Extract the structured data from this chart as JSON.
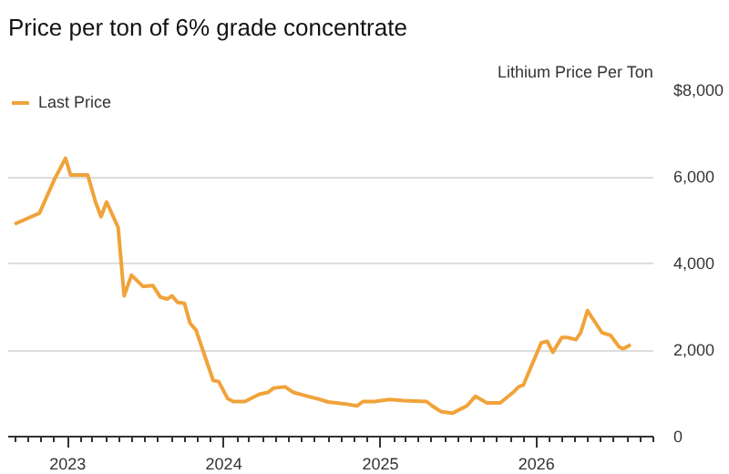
{
  "chart_data": {
    "type": "line",
    "title": "Price per ton of 6% grade concentrate",
    "ylabel": "Lithium Price Per Ton",
    "x": [
      "2022-08-30",
      "2022-10-27",
      "2022-12-02",
      "2022-12-27",
      "2023-01-08",
      "2023-02-17",
      "2023-03-07",
      "2023-03-20",
      "2023-04-02",
      "2023-04-29",
      "2023-05-13",
      "2023-05-30",
      "2023-06-26",
      "2023-07-19",
      "2023-08-06",
      "2023-08-22",
      "2023-09-02",
      "2023-09-15",
      "2023-10-01",
      "2023-10-14",
      "2023-10-28",
      "2023-12-07",
      "2023-12-20",
      "2024-01-10",
      "2024-01-23",
      "2024-02-19",
      "2024-03-24",
      "2024-04-13",
      "2024-04-26",
      "2024-05-23",
      "2024-06-12",
      "2024-07-16",
      "2024-08-05",
      "2024-09-01",
      "2024-10-08",
      "2024-11-07",
      "2024-11-21",
      "2024-12-18",
      "2025-01-22",
      "2025-02-24",
      "2025-04-19",
      "2025-05-02",
      "2025-05-22",
      "2025-06-18",
      "2025-07-22",
      "2025-08-11",
      "2025-09-07",
      "2025-10-08",
      "2025-11-07",
      "2025-11-20",
      "2025-12-01",
      "2026-01-12",
      "2026-01-26",
      "2026-02-08",
      "2026-03-01",
      "2026-03-14",
      "2026-04-03",
      "2026-04-14",
      "2026-04-30",
      "2026-06-03",
      "2026-06-23",
      "2026-07-13",
      "2026-07-23",
      "2026-08-09"
    ],
    "series": [
      {
        "name": "Last Price",
        "color": "#f0a33a",
        "values": [
          4910,
          5160,
          5960,
          6430,
          6040,
          6040,
          5420,
          5080,
          5420,
          4830,
          3250,
          3730,
          3470,
          3490,
          3220,
          3180,
          3250,
          3100,
          3080,
          2620,
          2460,
          1300,
          1270,
          880,
          810,
          810,
          980,
          1020,
          1120,
          1150,
          1020,
          930,
          880,
          800,
          760,
          710,
          810,
          810,
          860,
          830,
          810,
          710,
          580,
          540,
          710,
          930,
          780,
          780,
          1020,
          1150,
          1190,
          2170,
          2200,
          1950,
          2290,
          2290,
          2240,
          2400,
          2910,
          2400,
          2340,
          2070,
          2030,
          2120
        ]
      }
    ],
    "xlim": [
      "2022-08-15",
      "2026-10-01"
    ],
    "xticks": [
      {
        "value": "2023-01-01",
        "label": "2023"
      },
      {
        "value": "2024-01-01",
        "label": "2024"
      },
      {
        "value": "2025-01-01",
        "label": "2025"
      },
      {
        "value": "2026-01-01",
        "label": "2026"
      }
    ],
    "ylim": [
      0,
      8000
    ],
    "yticks": [
      0,
      {
        "value": 2000,
        "label": "2,000"
      },
      {
        "value": 4000,
        "label": "4,000"
      },
      {
        "value": 6000,
        "label": "6,000"
      },
      {
        "value": 8000,
        "label": "$8,000"
      }
    ],
    "grid": "y",
    "legend": "top left",
    "marker": "none",
    "line_style": "solid"
  }
}
